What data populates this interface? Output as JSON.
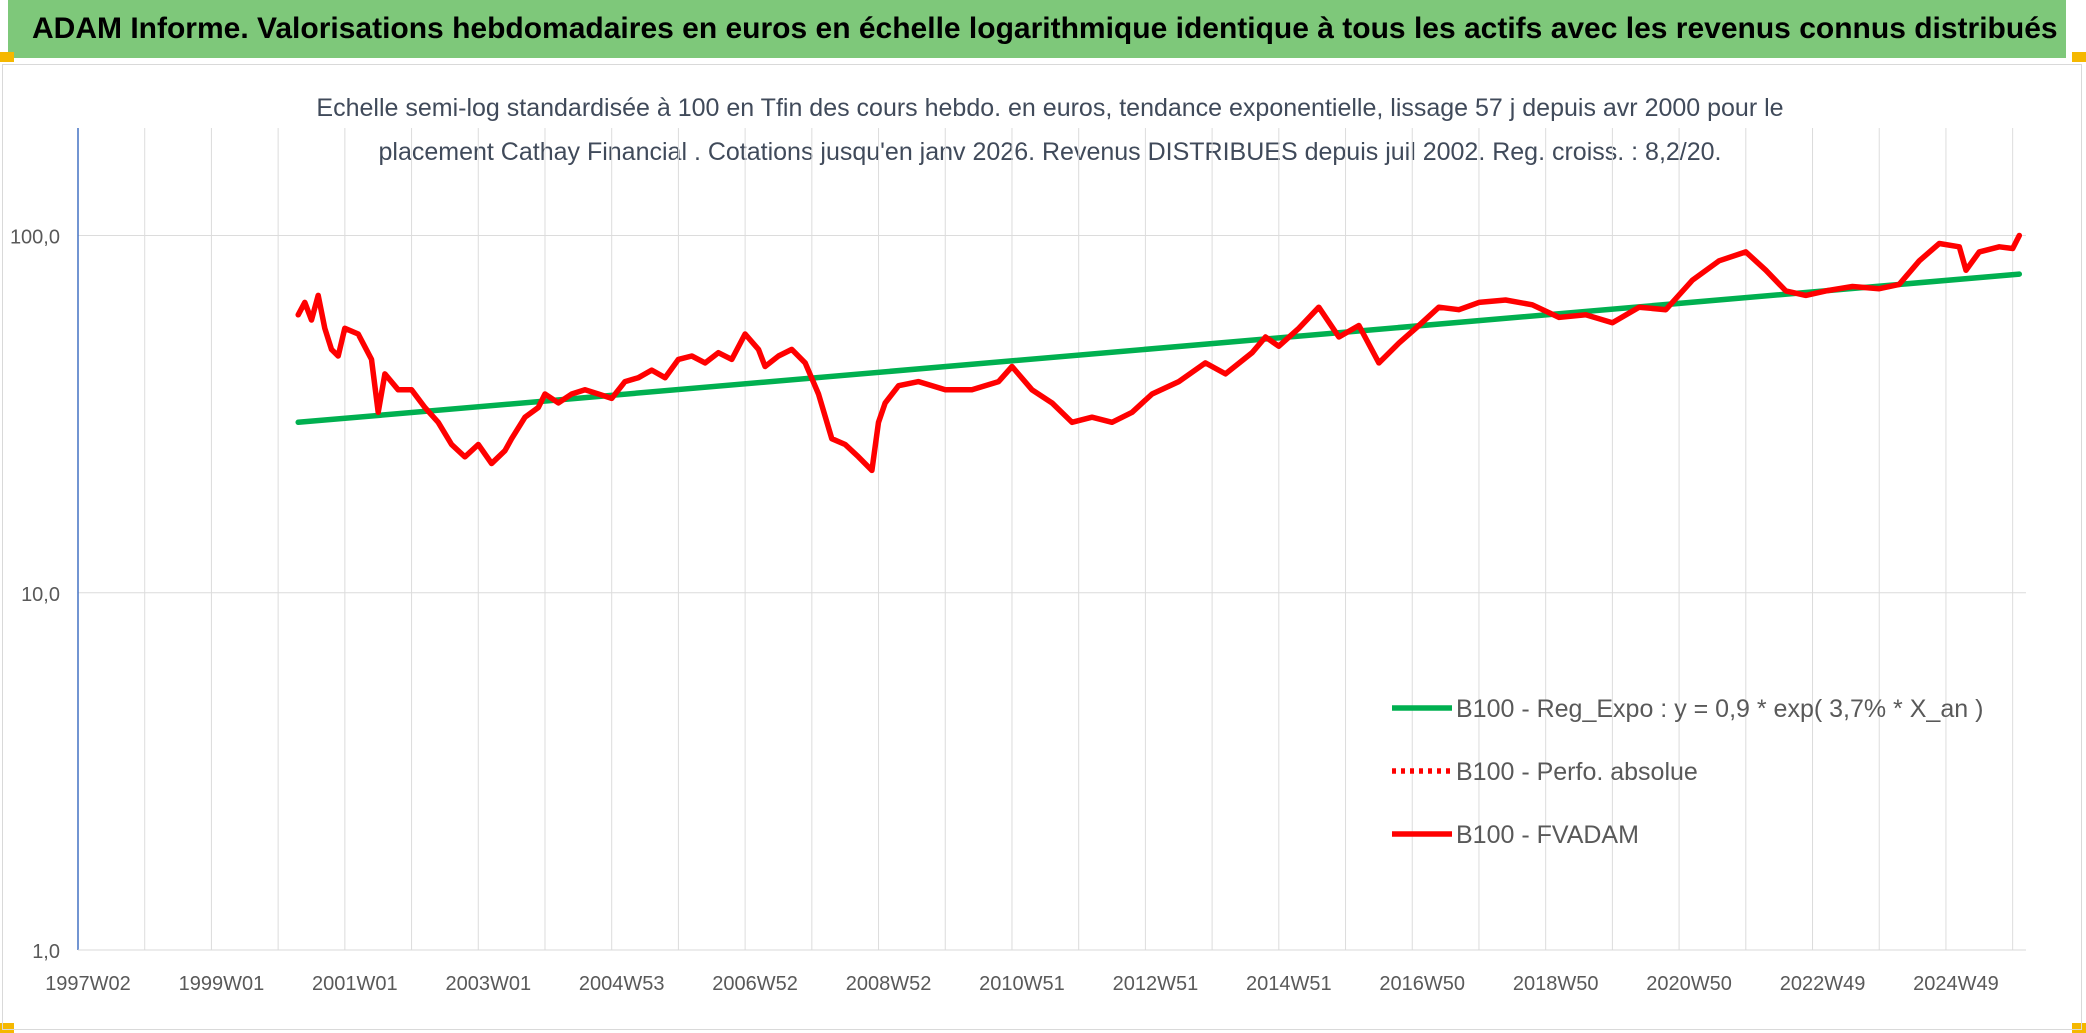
{
  "header": {
    "title": "ADAM Informe. Valorisations hebdomadaires en euros en échelle logarithmique identique à tous les actifs avec les revenus connus distribués"
  },
  "chart_data": {
    "type": "line",
    "title": "Echelle semi-log standardisée à 100 en Tfin des cours hebdo. en euros, tendance exponentielle, lissage 57 j depuis avr 2000 pour le placement Cathay Financial . Cotations jusqu'en janv 2026. Revenus DISTRIBUES depuis juil 2002. Reg. croiss. : 8,2/20.",
    "title_lines": [
      "Echelle semi-log standardisée à 100 en Tfin des cours hebdo. en euros, tendance exponentielle, lissage 57 j depuis avr 2000 pour le",
      "placement Cathay Financial . Cotations jusqu'en janv 2026. Revenus DISTRIBUES depuis juil 2002. Reg. croiss. : 8,2/20."
    ],
    "y_scale": "log",
    "ylim": [
      1,
      200
    ],
    "y_ticks": [
      {
        "value": 1,
        "label": "1,0"
      },
      {
        "value": 10,
        "label": "10,0"
      },
      {
        "value": 100,
        "label": "100,0"
      }
    ],
    "x_range": [
      1997.0,
      2026.2
    ],
    "x_ticks": [
      {
        "value": 1997.0,
        "label": "1997W02"
      },
      {
        "value": 1999.0,
        "label": "1999W01"
      },
      {
        "value": 2001.0,
        "label": "2001W01"
      },
      {
        "value": 2003.0,
        "label": "2003W01"
      },
      {
        "value": 2005.0,
        "label": "2004W53"
      },
      {
        "value": 2007.0,
        "label": "2006W52"
      },
      {
        "value": 2009.0,
        "label": "2008W52"
      },
      {
        "value": 2011.0,
        "label": "2010W51"
      },
      {
        "value": 2013.0,
        "label": "2012W51"
      },
      {
        "value": 2015.0,
        "label": "2014W51"
      },
      {
        "value": 2017.0,
        "label": "2016W50"
      },
      {
        "value": 2019.0,
        "label": "2018W50"
      },
      {
        "value": 2021.0,
        "label": "2020W50"
      },
      {
        "value": 2023.0,
        "label": "2022W49"
      },
      {
        "value": 2025.0,
        "label": "2024W49"
      }
    ],
    "grid": true,
    "legend_position": "bottom-right",
    "series": [
      {
        "name": "B100 - Reg_Expo : y = 0,9 * exp( 3,7% *  X_an )",
        "color": "#00b050",
        "style": "solid",
        "x": [
          2000.3,
          2026.1
        ],
        "y": [
          30.0,
          78.0
        ]
      },
      {
        "name": "B100 - Perfo. absolue",
        "color": "#ff0000",
        "style": "dotted",
        "x": [],
        "y": []
      },
      {
        "name": "B100 - FVADAM",
        "color": "#ff0000",
        "style": "solid",
        "x": [
          2000.3,
          2000.4,
          2000.5,
          2000.6,
          2000.7,
          2000.8,
          2000.9,
          2001.0,
          2001.2,
          2001.4,
          2001.5,
          2001.6,
          2001.8,
          2002.0,
          2002.2,
          2002.4,
          2002.6,
          2002.8,
          2003.0,
          2003.2,
          2003.4,
          2003.5,
          2003.7,
          2003.9,
          2004.0,
          2004.2,
          2004.4,
          2004.6,
          2004.8,
          2005.0,
          2005.2,
          2005.4,
          2005.6,
          2005.8,
          2006.0,
          2006.2,
          2006.4,
          2006.6,
          2006.8,
          2007.0,
          2007.2,
          2007.3,
          2007.5,
          2007.7,
          2007.9,
          2008.1,
          2008.3,
          2008.5,
          2008.7,
          2008.9,
          2009.0,
          2009.1,
          2009.3,
          2009.6,
          2010.0,
          2010.4,
          2010.8,
          2011.0,
          2011.3,
          2011.6,
          2011.9,
          2012.2,
          2012.5,
          2012.8,
          2013.1,
          2013.5,
          2013.9,
          2014.2,
          2014.6,
          2014.8,
          2015.0,
          2015.3,
          2015.6,
          2015.9,
          2016.2,
          2016.5,
          2016.8,
          2017.1,
          2017.4,
          2017.7,
          2018.0,
          2018.4,
          2018.8,
          2019.2,
          2019.6,
          2020.0,
          2020.4,
          2020.8,
          2021.2,
          2021.6,
          2022.0,
          2022.3,
          2022.6,
          2022.9,
          2023.2,
          2023.6,
          2024.0,
          2024.3,
          2024.6,
          2024.9,
          2025.2,
          2025.3,
          2025.5,
          2025.8,
          2026.0,
          2026.1
        ],
        "y": [
          60,
          65,
          58,
          68,
          55,
          48,
          46,
          55,
          53,
          45,
          32,
          41,
          37,
          37,
          33,
          30,
          26,
          24,
          26,
          23,
          25,
          27,
          31,
          33,
          36,
          34,
          36,
          37,
          36,
          35,
          39,
          40,
          42,
          40,
          45,
          46,
          44,
          47,
          45,
          53,
          48,
          43,
          46,
          48,
          44,
          36,
          27,
          26,
          24,
          22,
          30,
          34,
          38,
          39,
          37,
          37,
          39,
          43,
          37,
          34,
          30,
          31,
          30,
          32,
          36,
          39,
          44,
          41,
          47,
          52,
          49,
          55,
          63,
          52,
          56,
          44,
          50,
          56,
          63,
          62,
          65,
          66,
          64,
          59,
          60,
          57,
          63,
          62,
          75,
          85,
          90,
          80,
          70,
          68,
          70,
          72,
          71,
          73,
          85,
          95,
          93,
          80,
          90,
          93,
          92,
          100
        ]
      }
    ]
  }
}
